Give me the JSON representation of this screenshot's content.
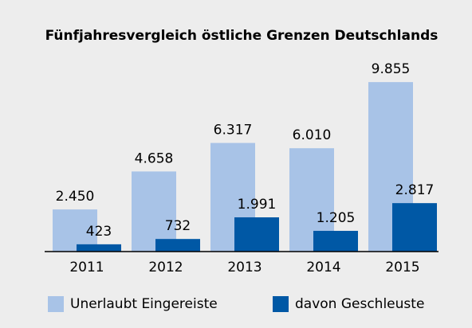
{
  "chart_data": {
    "type": "bar",
    "title": "Fünfjahresvergleich östliche Grenzen Deutschlands",
    "categories": [
      "2011",
      "2012",
      "2013",
      "2014",
      "2015"
    ],
    "series": [
      {
        "name": "Unerlaubt Eingereiste",
        "color": "#a8c3e7",
        "values": [
          2450,
          4658,
          6317,
          6010,
          9855
        ],
        "value_labels": [
          "2.450",
          "4.658",
          "6.317",
          "6.010",
          "9.855"
        ]
      },
      {
        "name": "davon Geschleuste",
        "color": "#0058a5",
        "values": [
          423,
          732,
          1991,
          1205,
          2817
        ],
        "value_labels": [
          "423",
          "732",
          "1.991",
          "1.205",
          "2.817"
        ]
      }
    ],
    "ylim": [
      0,
      10000
    ],
    "legend": "bottom"
  }
}
